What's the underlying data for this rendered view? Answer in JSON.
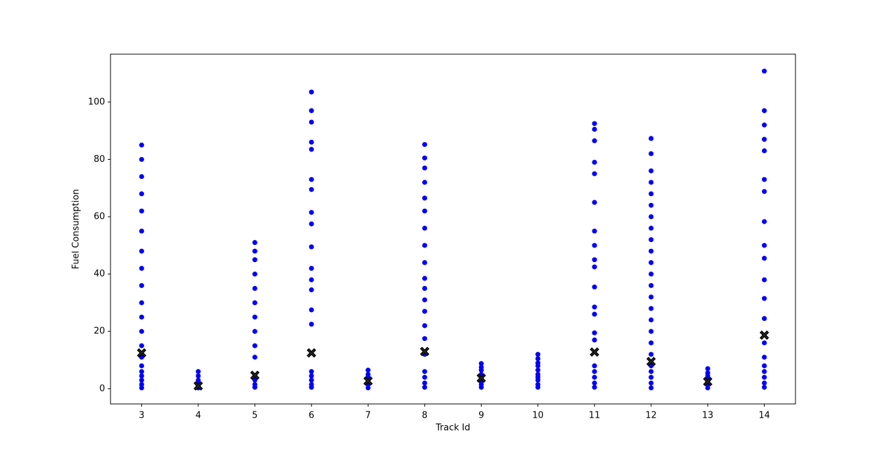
{
  "chart_data": {
    "type": "scatter",
    "xlabel": "Track Id",
    "ylabel": "Fuel Consumption",
    "xlim": [
      2.45,
      14.55
    ],
    "ylim": [
      -5.3,
      116.7
    ],
    "xticks": [
      3,
      4,
      5,
      6,
      7,
      8,
      9,
      10,
      11,
      12,
      13,
      14
    ],
    "yticks": [
      0,
      20,
      40,
      60,
      80,
      100
    ],
    "grid": false,
    "series": [
      {
        "color": "#0000ff",
        "marker": "o",
        "x": [
          3,
          3,
          3,
          3,
          3,
          3,
          3,
          3,
          3,
          3,
          3,
          3,
          3,
          3,
          3,
          3,
          3,
          3,
          3,
          3,
          4,
          4,
          4,
          4,
          4,
          4,
          5,
          5,
          5,
          5,
          5,
          5,
          5,
          5,
          5,
          5,
          5,
          5,
          5,
          5,
          6,
          6,
          6,
          6,
          6,
          6,
          6,
          6,
          6,
          6,
          6,
          6,
          6,
          6,
          6,
          6,
          6,
          6,
          6,
          6,
          7,
          7,
          7,
          7,
          7,
          7,
          8,
          8,
          8,
          8,
          8,
          8,
          8,
          8,
          8,
          8,
          8,
          8,
          8,
          8,
          8,
          8,
          8,
          8,
          8,
          8,
          9,
          9,
          9,
          9,
          9,
          9,
          9,
          9,
          10,
          10,
          10,
          10,
          10,
          10,
          10,
          10,
          10,
          10,
          11,
          11,
          11,
          11,
          11,
          11,
          11,
          11,
          11,
          11,
          11,
          11,
          11,
          11,
          11,
          11,
          11,
          11,
          11,
          11,
          12,
          12,
          12,
          12,
          12,
          12,
          12,
          12,
          12,
          12,
          12,
          12,
          12,
          12,
          12,
          12,
          12,
          12,
          12,
          12,
          12,
          12,
          12,
          12,
          13,
          13,
          13,
          13,
          13,
          13,
          13,
          14,
          14,
          14,
          14,
          14,
          14,
          14,
          14,
          14,
          14,
          14,
          14,
          14,
          14,
          14,
          14,
          14,
          14,
          14,
          14
        ],
        "values": [
          0.3,
          1.5,
          3,
          4.5,
          6,
          8,
          11,
          15,
          20,
          25,
          30,
          36,
          42,
          48,
          55,
          62,
          68,
          74,
          80,
          85,
          0.3,
          1,
          2,
          3,
          4.5,
          6,
          0.5,
          1.5,
          3,
          4.5,
          11,
          15,
          20,
          25,
          30,
          35,
          40,
          45,
          48,
          51,
          0.5,
          1.5,
          3,
          4.5,
          6,
          22.5,
          27.5,
          34.5,
          38,
          42,
          49.5,
          57.5,
          61.5,
          69.5,
          73,
          83.5,
          86,
          93,
          97,
          103.5,
          0.3,
          1.5,
          3,
          4,
          5,
          6.5,
          0.5,
          2,
          4,
          6,
          12,
          17.5,
          22,
          27,
          31,
          35,
          38.5,
          44,
          50,
          56,
          62,
          66.5,
          72,
          77,
          80.5,
          85.2,
          0.5,
          1.5,
          2.5,
          3.5,
          5,
          6.5,
          7.5,
          8.8,
          0.5,
          1.5,
          3,
          4,
          5,
          6.5,
          8,
          9,
          10.5,
          12,
          0.5,
          2,
          4,
          6,
          8,
          17,
          19.5,
          26,
          28.5,
          35.5,
          42.5,
          45,
          50,
          55,
          65,
          75,
          79,
          86.5,
          90.5,
          92.5,
          0.3,
          2,
          4,
          6,
          8,
          12,
          16,
          20,
          24,
          28,
          32,
          36,
          40,
          44,
          48,
          52,
          56,
          60,
          64,
          68,
          72,
          76,
          82,
          87.3,
          0.3,
          1.5,
          2.5,
          3.5,
          4.5,
          5.5,
          7,
          0.5,
          2,
          4,
          6,
          8,
          11,
          16,
          24.5,
          31.5,
          38,
          45.5,
          50,
          58.3,
          68.8,
          73,
          83,
          87,
          92,
          97,
          110.8
        ]
      },
      {
        "color": "#000000",
        "marker": "X",
        "x": [
          3,
          4,
          5,
          6,
          7,
          8,
          9,
          11,
          12,
          13,
          14
        ],
        "values": [
          12.5,
          1,
          4.7,
          12.5,
          2.7,
          13,
          3.7,
          12.8,
          9.5,
          2.5,
          18.7
        ]
      }
    ]
  }
}
